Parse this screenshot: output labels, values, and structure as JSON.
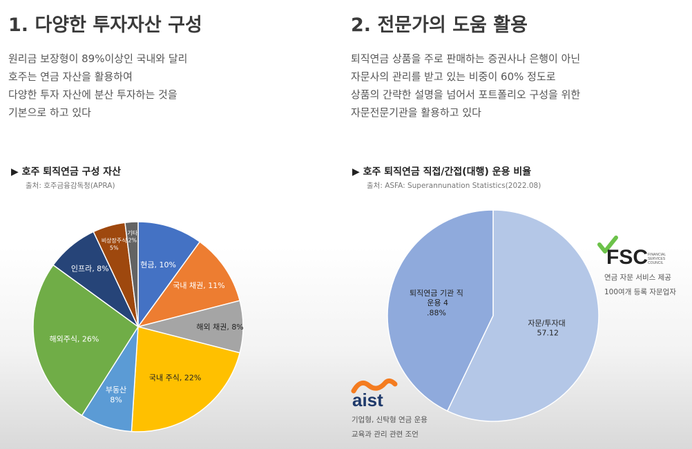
{
  "left": {
    "heading": "1. 다양한 투자자산 구성",
    "desc_lines": [
      "원리금 보장형이 89%이상인 국내와 달리",
      "호주는 연금 자산을 활용하여",
      "다양한 투자 자산에 분산 투자하는 것을",
      "기본으로 하고 있다"
    ]
  },
  "right": {
    "heading": "2. 전문가의 도움 활용",
    "desc_lines": [
      "퇴직연금 상품을 주로 판매하는 증권사나 은행이 아닌",
      "자문사의 관리를 받고 있는 비중이 60% 정도로",
      "상품의 간략한 설명을 넘어서 포트폴리오 구성을 위한",
      "자문전문기관을 활용하고 있다"
    ],
    "fsc": {
      "logo_text": "FSC",
      "logo_small": [
        "FINANCIAL",
        "SERVICES",
        "COUNCIL"
      ],
      "caption": [
        "연금 자문 서비스 제공",
        "100여개 등록 자문업자"
      ]
    },
    "aist": {
      "logo_text": "aist",
      "caption": [
        "기업형, 신탁형 연금 운용",
        "교육과 관리 관련 조언"
      ]
    }
  },
  "chart_data": [
    {
      "type": "pie",
      "title": "▶ 호주 퇴직연금 구성 자산",
      "source": "출처: 호주금융감독청(APRA)",
      "slices": [
        {
          "label": "현금, 10%",
          "value": 10,
          "color": "#4472c4"
        },
        {
          "label": "국내 채권, 11%",
          "value": 11,
          "color": "#ed7d31"
        },
        {
          "label": "해외 채권, 8%",
          "value": 8,
          "color": "#a5a5a5"
        },
        {
          "label": "국내 주식, 22%",
          "value": 22,
          "color": "#ffc000"
        },
        {
          "label": "부동산 8%",
          "value": 8,
          "color": "#5b9bd5"
        },
        {
          "label": "해외주식, 26%",
          "value": 26,
          "color": "#70ad47"
        },
        {
          "label": "인프라, 8%",
          "value": 8,
          "color": "#264478"
        },
        {
          "label": "비상장주식 5%",
          "value": 5,
          "color": "#9e480e"
        },
        {
          "label": "기타 2%",
          "value": 2,
          "color": "#636363"
        }
      ]
    },
    {
      "type": "pie",
      "title": "▶ 호주 퇴직연금 직접/간접(대행) 운용 비율",
      "source": "출처: ASFA: Superannunation Statistics(2022.08)",
      "slices": [
        {
          "label": "자문/투자대행 57.12%",
          "value": 57.12,
          "color": "#b4c7e7"
        },
        {
          "label": "퇴직연금 기관 직접 운용 42.88%",
          "value": 42.88,
          "color": "#8faadc"
        }
      ]
    }
  ]
}
